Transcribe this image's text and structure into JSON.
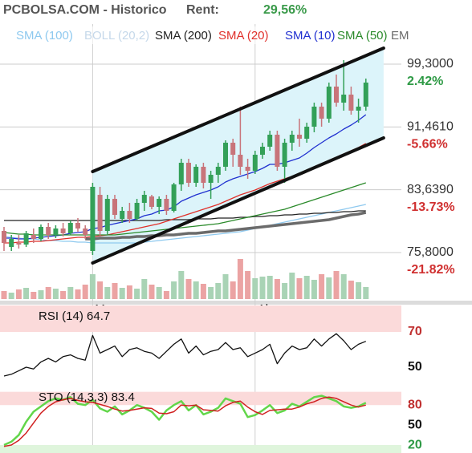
{
  "header": {
    "title": "PCBOLSA.COM - Historico",
    "rent_label": "Rent:",
    "rent_value": "29,56%",
    "rent_color": "#3a9a4a"
  },
  "chart_data": [
    {
      "type": "candlestick",
      "categories": [
        null,
        null,
        null,
        null,
        null,
        null,
        null,
        null,
        null,
        null,
        null,
        null,
        "Mar",
        null,
        null,
        null,
        null,
        null,
        null,
        null,
        null,
        null,
        null,
        null,
        null,
        null,
        null,
        null,
        null,
        null,
        null,
        null,
        null,
        null,
        "Abr",
        null,
        null,
        null,
        null,
        null,
        null,
        null,
        null,
        null,
        null,
        null,
        null,
        null,
        null,
        null
      ],
      "open": [
        78.5,
        76.5,
        77,
        76.8,
        78,
        77.5,
        79,
        78,
        78.8,
        78.2,
        79.5,
        78.8,
        76,
        83,
        78.5,
        82.5,
        80,
        81,
        80,
        82,
        82.8,
        81.5,
        82.5,
        81,
        84.3,
        87,
        84.5,
        86.5,
        84.5,
        85.5,
        86.5,
        89.5,
        88,
        86.5,
        86,
        88,
        89,
        90.5,
        86.5,
        89.5,
        90.5,
        90,
        91.5,
        94,
        92.5,
        96.5,
        94.5,
        95.5,
        93.5,
        94
      ],
      "high": [
        79,
        78,
        78,
        78.5,
        78.8,
        79.3,
        79.5,
        79.2,
        79.5,
        79.8,
        80.1,
        79.2,
        84.5,
        84,
        83,
        83,
        81.5,
        82,
        82.5,
        83.5,
        83,
        82.8,
        83,
        84.5,
        87.5,
        87.5,
        86.8,
        87,
        86,
        87,
        89.8,
        90,
        94,
        87.5,
        88.5,
        89.5,
        91,
        91,
        90,
        91,
        92.5,
        92,
        94.5,
        94.5,
        97,
        98,
        99.8,
        96.5,
        95,
        97.5
      ],
      "low": [
        76,
        76,
        76.3,
        76.5,
        77,
        77.2,
        77.5,
        77.6,
        77.8,
        78,
        78.4,
        77.5,
        75.5,
        77.8,
        78,
        80,
        79.5,
        79.5,
        79.8,
        81,
        81.2,
        80.6,
        80.5,
        80.8,
        83.5,
        84,
        84,
        83.8,
        82.5,
        84.5,
        86,
        86.5,
        85.5,
        85,
        85.6,
        87.5,
        88.5,
        86,
        84.5,
        88.5,
        89,
        89.5,
        90.8,
        91.5,
        92,
        94,
        93.5,
        93,
        92,
        93.5
      ],
      "close": [
        77,
        77.5,
        76.8,
        78.2,
        77.5,
        79,
        78,
        78.8,
        78.2,
        79.5,
        78.8,
        78,
        84,
        78.5,
        82.5,
        80.5,
        81,
        80,
        82,
        83,
        81.5,
        82.5,
        81,
        84.3,
        87,
        84.5,
        86.5,
        84.5,
        85.5,
        86.5,
        89.5,
        88,
        86.5,
        86,
        88,
        89,
        90.5,
        86.5,
        89.5,
        90.5,
        90,
        91.5,
        94,
        92.5,
        96.5,
        94.5,
        95.5,
        93.5,
        94,
        97
      ],
      "up_color": "#33a058",
      "down_color": "#c8747a",
      "ylim": [
        69.8,
        104.3
      ],
      "yticks": [
        {
          "value": 99.3,
          "label": "99,3000"
        },
        {
          "value": 91.461,
          "label": "91,4610"
        },
        {
          "value": 83.639,
          "label": "83,6390"
        },
        {
          "value": 75.8,
          "label": "75,8000"
        }
      ],
      "ytick_change_labels": [
        "2.42%",
        "-5.66%",
        "-13.73%",
        "-21.82%"
      ],
      "ytick_change_colors": [
        "#2e9a45",
        "#d03030",
        "#d03030",
        "#d03030"
      ],
      "grid": true,
      "series": [
        {
          "name": "SMA (100)",
          "color": "#8ec9ef",
          "values": [
            77.8,
            77.7,
            77.6,
            77.5,
            77.5,
            77.4,
            77.3,
            77.3,
            77.2,
            77.2,
            77.1,
            77.1,
            77,
            77,
            77,
            77,
            77,
            77,
            77,
            77.1,
            77.2,
            77.3,
            77.4,
            77.5,
            77.6,
            77.7,
            77.8,
            77.9,
            78,
            78.1,
            78.2,
            78.3,
            78.4,
            78.6,
            78.8,
            79,
            79.2,
            79.4,
            79.6,
            79.8,
            80,
            80.2,
            80.4,
            80.6,
            80.8,
            81,
            81.2,
            81.4,
            81.6,
            81.8
          ]
        },
        {
          "name": "BOLL (20,2)",
          "color": "#c5d8ea"
        },
        {
          "name": "SMA (200)",
          "color": "#222222",
          "values": [
            79.8,
            79.8,
            79.8,
            79.8,
            79.8,
            79.8,
            79.8,
            79.8,
            79.8,
            79.8,
            79.8,
            79.8,
            79.8,
            79.8,
            79.8,
            79.8,
            79.8,
            79.8,
            79.8,
            79.8,
            79.8,
            79.8,
            79.9,
            79.9,
            79.9,
            79.9,
            80,
            80,
            80,
            80.1,
            80.1,
            80.1,
            80.2,
            80.2,
            80.3,
            80.3,
            80.4,
            80.4,
            80.5,
            80.5,
            80.6,
            80.6,
            80.7,
            80.7,
            80.8,
            80.8,
            80.9,
            80.9,
            81,
            81
          ]
        },
        {
          "name": "SMA (20)",
          "color": "#e0302a",
          "values": [
            77,
            77,
            77.1,
            77.1,
            77.2,
            77.2,
            77.3,
            77.4,
            77.5,
            77.6,
            77.7,
            77.7,
            77.8,
            77.9,
            78,
            78.2,
            78.4,
            78.6,
            78.8,
            79,
            79.2,
            79.4,
            79.7,
            80,
            80.3,
            80.6,
            80.9,
            81.2,
            81.5,
            81.8,
            82.2,
            82.6,
            83,
            83.3,
            83.6,
            84,
            84.4,
            84.7,
            85,
            85.3,
            85.7,
            86.1,
            86.5,
            86.9,
            87.3,
            87.7,
            88.1,
            88.5,
            88.9,
            89.4
          ]
        },
        {
          "name": "SMA (10)",
          "color": "#2030d0",
          "values": [
            77.6,
            77.6,
            77.5,
            77.5,
            77.6,
            77.7,
            77.8,
            77.9,
            78,
            78.2,
            78.3,
            78.4,
            78.8,
            78.9,
            79.2,
            79.4,
            79.6,
            79.8,
            80,
            80.4,
            80.6,
            81,
            81.1,
            81.5,
            82.2,
            82.6,
            83,
            83.3,
            83.6,
            84,
            84.6,
            85,
            85.3,
            85.6,
            85.9,
            86.3,
            86.8,
            86.8,
            87,
            87.3,
            87.6,
            88.2,
            88.9,
            89.5,
            90.1,
            90.6,
            91.2,
            91.7,
            92.3,
            93
          ]
        },
        {
          "name": "SMA (50)",
          "color": "#2a8a2a",
          "values": [
            78.3,
            78.2,
            78.1,
            78.1,
            78,
            78,
            78,
            78,
            78,
            78,
            78,
            78,
            78,
            78,
            78,
            78,
            78.1,
            78.2,
            78.3,
            78.4,
            78.5,
            78.6,
            78.7,
            78.8,
            78.9,
            79,
            79.1,
            79.2,
            79.3,
            79.4,
            79.6,
            79.8,
            80,
            80.2,
            80.4,
            80.6,
            80.8,
            81,
            81.2,
            81.5,
            81.8,
            82.1,
            82.4,
            82.7,
            83,
            83.3,
            83.6,
            83.9,
            84.2,
            84.5
          ]
        },
        {
          "name": "EM",
          "color": "#6b6b6b",
          "width": 3.5,
          "values": [
            null,
            null,
            null,
            null,
            null,
            null,
            null,
            null,
            null,
            null,
            null,
            77.5,
            77.5,
            77.6,
            77.6,
            77.6,
            77.7,
            77.7,
            77.8,
            77.8,
            77.9,
            77.9,
            78,
            78,
            78.1,
            78.2,
            78.2,
            78.3,
            78.4,
            78.5,
            78.5,
            78.6,
            78.7,
            78.8,
            78.9,
            79,
            79.1,
            79.2,
            79.3,
            79.4,
            79.5,
            79.6,
            79.7,
            79.8,
            79.9,
            80.1,
            80.3,
            80.5,
            80.6,
            80.8
          ]
        }
      ],
      "channel": {
        "x": [
          12,
          51.4
        ],
        "upper": [
          85.9,
          101.3
        ],
        "lower": [
          74.5,
          90.1
        ],
        "color": "#111111",
        "fill": "#dcf4fa"
      },
      "volume": {
        "ylim": [
          0,
          100
        ],
        "up_color": "#a9d3b5",
        "down_color": "#eba3a3",
        "values": [
          20,
          16,
          24,
          28,
          18,
          22,
          30,
          26,
          20,
          30,
          24,
          36,
          62,
          44,
          30,
          40,
          28,
          34,
          26,
          50,
          36,
          30,
          20,
          44,
          70,
          50,
          44,
          38,
          30,
          40,
          62,
          44,
          100,
          70,
          52,
          56,
          58,
          50,
          40,
          66,
          52,
          58,
          48,
          62,
          54,
          70,
          62,
          46,
          42,
          30
        ]
      }
    },
    {
      "type": "line",
      "title": "RSI (14) 64.7",
      "color": "#111111",
      "values": [
        45,
        46,
        48,
        50,
        49,
        53,
        55,
        53,
        56,
        57,
        55,
        54,
        68,
        58,
        60,
        62,
        56,
        60,
        61,
        59,
        58,
        55,
        59,
        63,
        66,
        58,
        62,
        57,
        59,
        60,
        64,
        60,
        61,
        56,
        58,
        60,
        63,
        52,
        58,
        62,
        60,
        61,
        66,
        62,
        66,
        69,
        65,
        60,
        63,
        64.7
      ],
      "ylim": [
        40,
        85
      ],
      "yticks": [
        50,
        70
      ],
      "ytick_colors": [
        "#111111",
        "#c03030"
      ],
      "bands": [
        {
          "from": 70,
          "to": 85,
          "color": "#fbdada"
        }
      ]
    },
    {
      "type": "line",
      "title": "STO (14,3,3) 83.4",
      "series": [
        {
          "color": "#62d64a",
          "width": 2.5,
          "values": [
            20,
            25,
            35,
            55,
            70,
            78,
            86,
            90,
            88,
            92,
            82,
            80,
            88,
            75,
            70,
            78,
            66,
            72,
            80,
            76,
            70,
            58,
            72,
            80,
            86,
            72,
            80,
            66,
            70,
            76,
            90,
            86,
            82,
            62,
            65,
            72,
            80,
            68,
            72,
            82,
            78,
            85,
            92,
            94,
            90,
            86,
            78,
            76,
            78,
            83.4
          ]
        },
        {
          "color": "#d02020",
          "width": 1.5,
          "values": [
            18,
            20,
            27,
            38,
            53,
            68,
            78,
            85,
            88,
            90,
            87,
            85,
            84,
            81,
            78,
            74,
            71,
            72,
            74,
            76,
            75,
            68,
            67,
            70,
            80,
            79,
            80,
            73,
            72,
            71,
            79,
            84,
            86,
            77,
            70,
            66,
            72,
            73,
            74,
            74,
            77,
            82,
            85,
            90,
            92,
            90,
            85,
            80,
            77,
            80
          ]
        }
      ],
      "ylim": [
        8,
        108
      ],
      "yticks": [
        20,
        50,
        80
      ],
      "ytick_colors": [
        "#2e9a45",
        "#111111",
        "#c03030"
      ],
      "bands": [
        {
          "from": 80,
          "to": 100,
          "color": "#fbdada"
        },
        {
          "from": 8,
          "to": 20,
          "color": "#dff5dc"
        }
      ]
    }
  ]
}
